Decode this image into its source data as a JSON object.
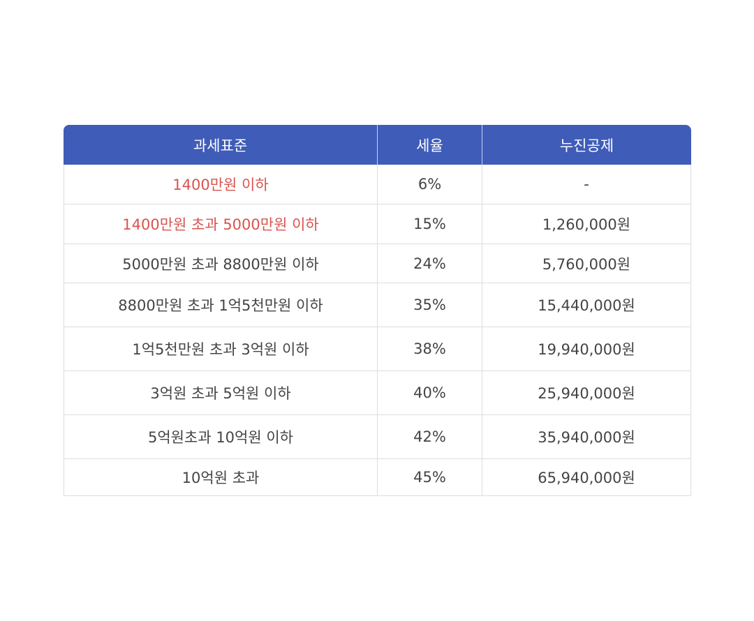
{
  "table": {
    "headers": [
      "과세표준",
      "세율",
      "누진공제"
    ],
    "rows": [
      {
        "bracket": "1400만원 이하",
        "rate": "6%",
        "deduction": "-",
        "highlight": true
      },
      {
        "bracket": "1400만원 초과  5000만원 이하",
        "rate": "15%",
        "deduction": "1,260,000원",
        "highlight": true
      },
      {
        "bracket": "5000만원 초과  8800만원 이하",
        "rate": "24%",
        "deduction": "5,760,000원",
        "highlight": false
      },
      {
        "bracket": "8800만원 초과  1억5천만원 이하",
        "rate": "35%",
        "deduction": "15,440,000원",
        "highlight": false
      },
      {
        "bracket": "1억5천만원 초과  3억원 이하",
        "rate": "38%",
        "deduction": "19,940,000원",
        "highlight": false
      },
      {
        "bracket": "3억원 초과  5억원 이하",
        "rate": "40%",
        "deduction": "25,940,000원",
        "highlight": false
      },
      {
        "bracket": "5억원초과  10억원 이하",
        "rate": "42%",
        "deduction": "35,940,000원",
        "highlight": false
      },
      {
        "bracket": "10억원 초과",
        "rate": "45%",
        "deduction": "65,940,000원",
        "highlight": false
      }
    ]
  },
  "colors": {
    "header_bg": "#3f5cb8",
    "header_text": "#ffffff",
    "highlight_text": "#d9534f",
    "body_text": "#444444"
  }
}
